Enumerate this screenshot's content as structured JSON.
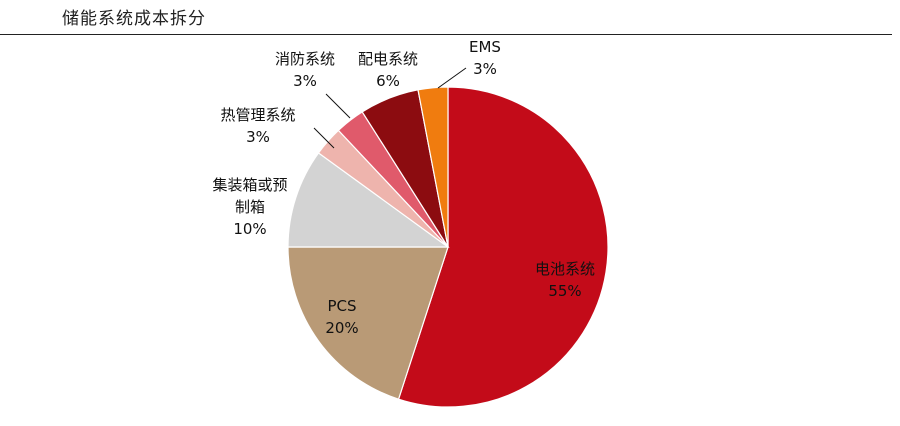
{
  "chart_data": {
    "type": "pie",
    "title": "储能系统成本拆分",
    "slices": [
      {
        "name": "电池系统",
        "value": 55,
        "label": "55%",
        "color": "#c30b19"
      },
      {
        "name": "PCS",
        "value": 20,
        "label": "20%",
        "color": "#b99a76"
      },
      {
        "name": "集装箱或预制箱",
        "value": 10,
        "label": "10%",
        "color": "#d3d3d3"
      },
      {
        "name": "热管理系统",
        "value": 3,
        "label": "3%",
        "color": "#eeb4ad"
      },
      {
        "name": "消防系统",
        "value": 3,
        "label": "3%",
        "color": "#e05a6b"
      },
      {
        "name": "配电系统",
        "value": 6,
        "label": "6%",
        "color": "#8c0c10"
      },
      {
        "name": "EMS",
        "value": 3,
        "label": "3%",
        "color": "#f07c0f"
      }
    ]
  }
}
